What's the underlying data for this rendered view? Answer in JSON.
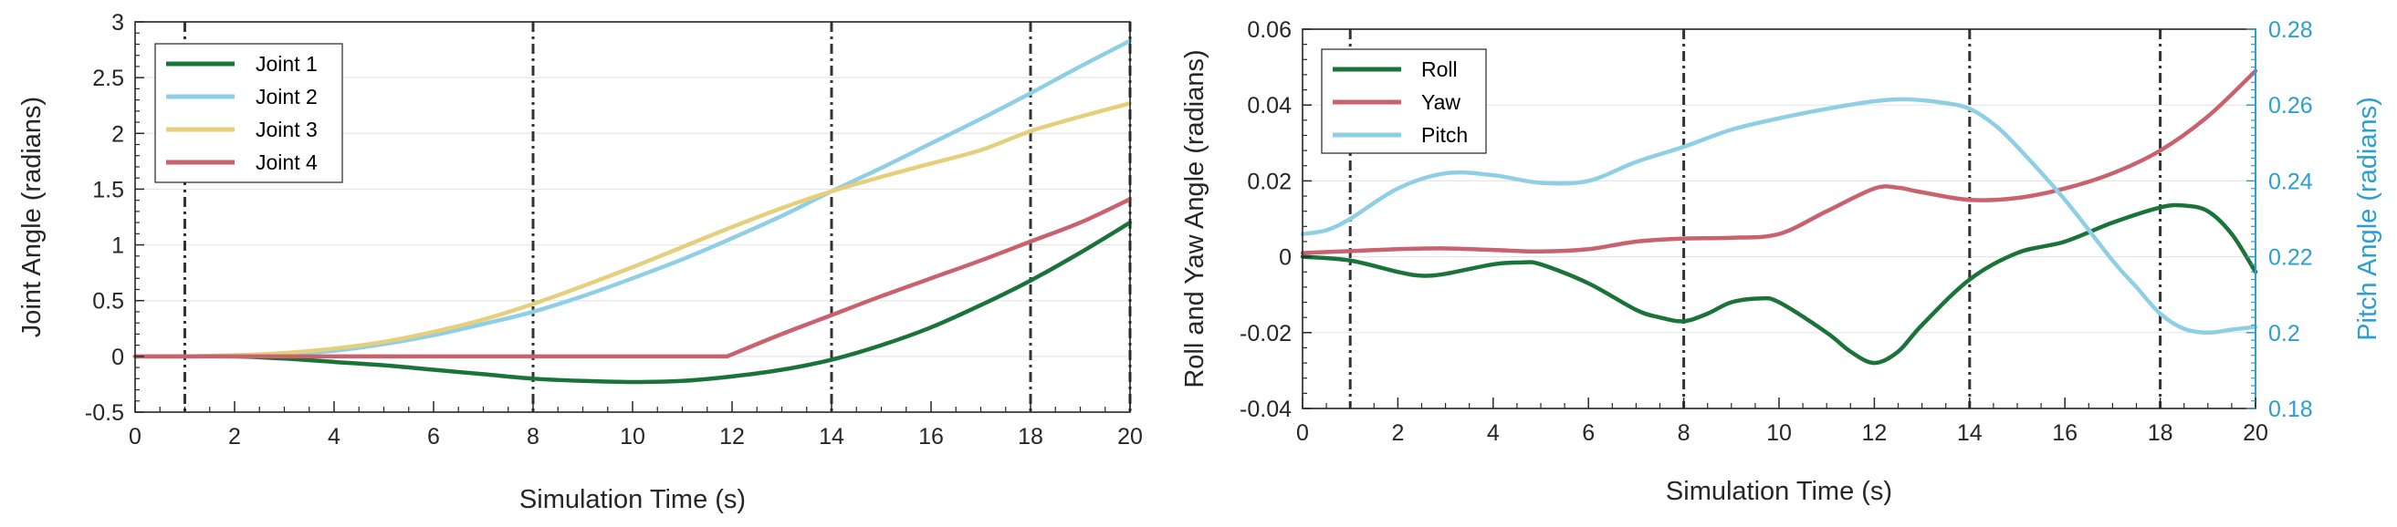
{
  "chart_data": [
    {
      "type": "line",
      "title": "",
      "xlabel": "Simulation Time (s)",
      "ylabel": "Joint Angle (radians)",
      "xlim": [
        0,
        20
      ],
      "ylim": [
        -0.5,
        3
      ],
      "xticks": [
        "0",
        "2",
        "4",
        "6",
        "8",
        "10",
        "12",
        "14",
        "16",
        "18",
        "20"
      ],
      "yticks": [
        "-0.5",
        "0",
        "0.5",
        "1",
        "1.5",
        "2",
        "2.5",
        "3"
      ],
      "grid": "horizontal",
      "vlines": [
        1,
        8,
        14,
        18,
        20
      ],
      "legend_position": "top-left",
      "series": [
        {
          "name": "Joint 1",
          "color": "#1a7338",
          "x": [
            0,
            1,
            2,
            3,
            4,
            5,
            6,
            7,
            8,
            9,
            10,
            11,
            12,
            13,
            14,
            15,
            16,
            17,
            18,
            19,
            20
          ],
          "y": [
            0,
            0,
            0,
            -0.02,
            -0.05,
            -0.08,
            -0.12,
            -0.16,
            -0.2,
            -0.22,
            -0.23,
            -0.22,
            -0.18,
            -0.12,
            -0.03,
            0.1,
            0.26,
            0.46,
            0.68,
            0.93,
            1.2
          ]
        },
        {
          "name": "Joint 2",
          "color": "#8fcfe6",
          "x": [
            0,
            1,
            2,
            3,
            4,
            5,
            6,
            7,
            8,
            9,
            10,
            11,
            12,
            13,
            14,
            15,
            16,
            17,
            18,
            19,
            20
          ],
          "y": [
            0,
            0,
            0.01,
            0.02,
            0.05,
            0.11,
            0.19,
            0.29,
            0.4,
            0.54,
            0.7,
            0.87,
            1.06,
            1.26,
            1.48,
            1.69,
            1.91,
            2.13,
            2.36,
            2.6,
            2.83
          ]
        },
        {
          "name": "Joint 3",
          "color": "#e5cf7a",
          "x": [
            0,
            1,
            2,
            3,
            4,
            5,
            6,
            7,
            8,
            9,
            10,
            11,
            12,
            13,
            14,
            15,
            16,
            17,
            18,
            19,
            20
          ],
          "y": [
            0,
            0,
            0.01,
            0.03,
            0.07,
            0.13,
            0.22,
            0.33,
            0.47,
            0.63,
            0.8,
            0.98,
            1.16,
            1.33,
            1.48,
            1.61,
            1.73,
            1.85,
            2.02,
            2.15,
            2.27
          ]
        },
        {
          "name": "Joint 4",
          "color": "#c9616e",
          "x": [
            0,
            1,
            2,
            4,
            6,
            8,
            10,
            11.9,
            13,
            14,
            15,
            16,
            17,
            18,
            19,
            20
          ],
          "y": [
            0,
            0,
            0,
            0,
            0,
            0,
            0,
            0,
            0.2,
            0.37,
            0.54,
            0.7,
            0.86,
            1.03,
            1.2,
            1.41
          ]
        }
      ]
    },
    {
      "type": "line",
      "title": "",
      "xlabel": "Simulation Time (s)",
      "ylabel": "Roll and Yaw Angle (radians)",
      "ylabel_right": "Pitch Angle (radians)",
      "xlim": [
        0,
        20
      ],
      "ylim": [
        -0.04,
        0.06
      ],
      "ylim_right": [
        0.18,
        0.28
      ],
      "xticks": [
        "0",
        "2",
        "4",
        "6",
        "8",
        "10",
        "12",
        "14",
        "16",
        "18",
        "20"
      ],
      "yticks": [
        "-0.04",
        "-0.02",
        "0",
        "0.02",
        "0.04",
        "0.06"
      ],
      "yticks_right": [
        "0.18",
        "0.2",
        "0.22",
        "0.24",
        "0.26",
        "0.28"
      ],
      "grid": "horizontal",
      "vlines": [
        1,
        8,
        14,
        18
      ],
      "legend_position": "top-left",
      "series": [
        {
          "name": "Roll",
          "color": "#1a7338",
          "axis": "left",
          "x": [
            0,
            1,
            2,
            2.5,
            3,
            4,
            4.6,
            5,
            6,
            7,
            7.5,
            8,
            8.5,
            9,
            9.6,
            10,
            11,
            11.5,
            12,
            12.5,
            13,
            14,
            15,
            16,
            17,
            18,
            18.5,
            19,
            19.5,
            20
          ],
          "y": [
            0,
            -0.001,
            -0.004,
            -0.005,
            -0.0045,
            -0.002,
            -0.0015,
            -0.002,
            -0.007,
            -0.014,
            -0.016,
            -0.017,
            -0.015,
            -0.012,
            -0.011,
            -0.012,
            -0.02,
            -0.025,
            -0.028,
            -0.025,
            -0.018,
            -0.006,
            0.001,
            0.004,
            0.009,
            0.013,
            0.0135,
            0.012,
            0.006,
            -0.004
          ]
        },
        {
          "name": "Yaw",
          "color": "#c9616e",
          "axis": "left",
          "x": [
            0,
            1,
            2,
            3,
            4,
            5,
            6,
            7,
            8,
            9,
            10,
            11,
            12,
            12.5,
            13,
            14,
            15,
            16,
            17,
            18,
            19,
            20
          ],
          "y": [
            0.001,
            0.0015,
            0.002,
            0.0022,
            0.0018,
            0.0014,
            0.002,
            0.004,
            0.0048,
            0.005,
            0.006,
            0.012,
            0.018,
            0.0182,
            0.017,
            0.015,
            0.0155,
            0.018,
            0.022,
            0.028,
            0.037,
            0.049
          ]
        },
        {
          "name": "Pitch",
          "color": "#8fcfe6",
          "axis": "right",
          "x": [
            0,
            0.5,
            1,
            2,
            3,
            4,
            5,
            6,
            7,
            8,
            9,
            10,
            11,
            12,
            12.7,
            13.5,
            14,
            14.5,
            15,
            16,
            17,
            17.5,
            18,
            18.5,
            19,
            19.5,
            20
          ],
          "y": [
            0.226,
            0.227,
            0.23,
            0.238,
            0.242,
            0.2415,
            0.2395,
            0.24,
            0.245,
            0.249,
            0.2535,
            0.2565,
            0.259,
            0.261,
            0.2615,
            0.2605,
            0.259,
            0.255,
            0.249,
            0.235,
            0.219,
            0.212,
            0.205,
            0.201,
            0.2,
            0.2008,
            0.2015
          ]
        }
      ]
    }
  ]
}
